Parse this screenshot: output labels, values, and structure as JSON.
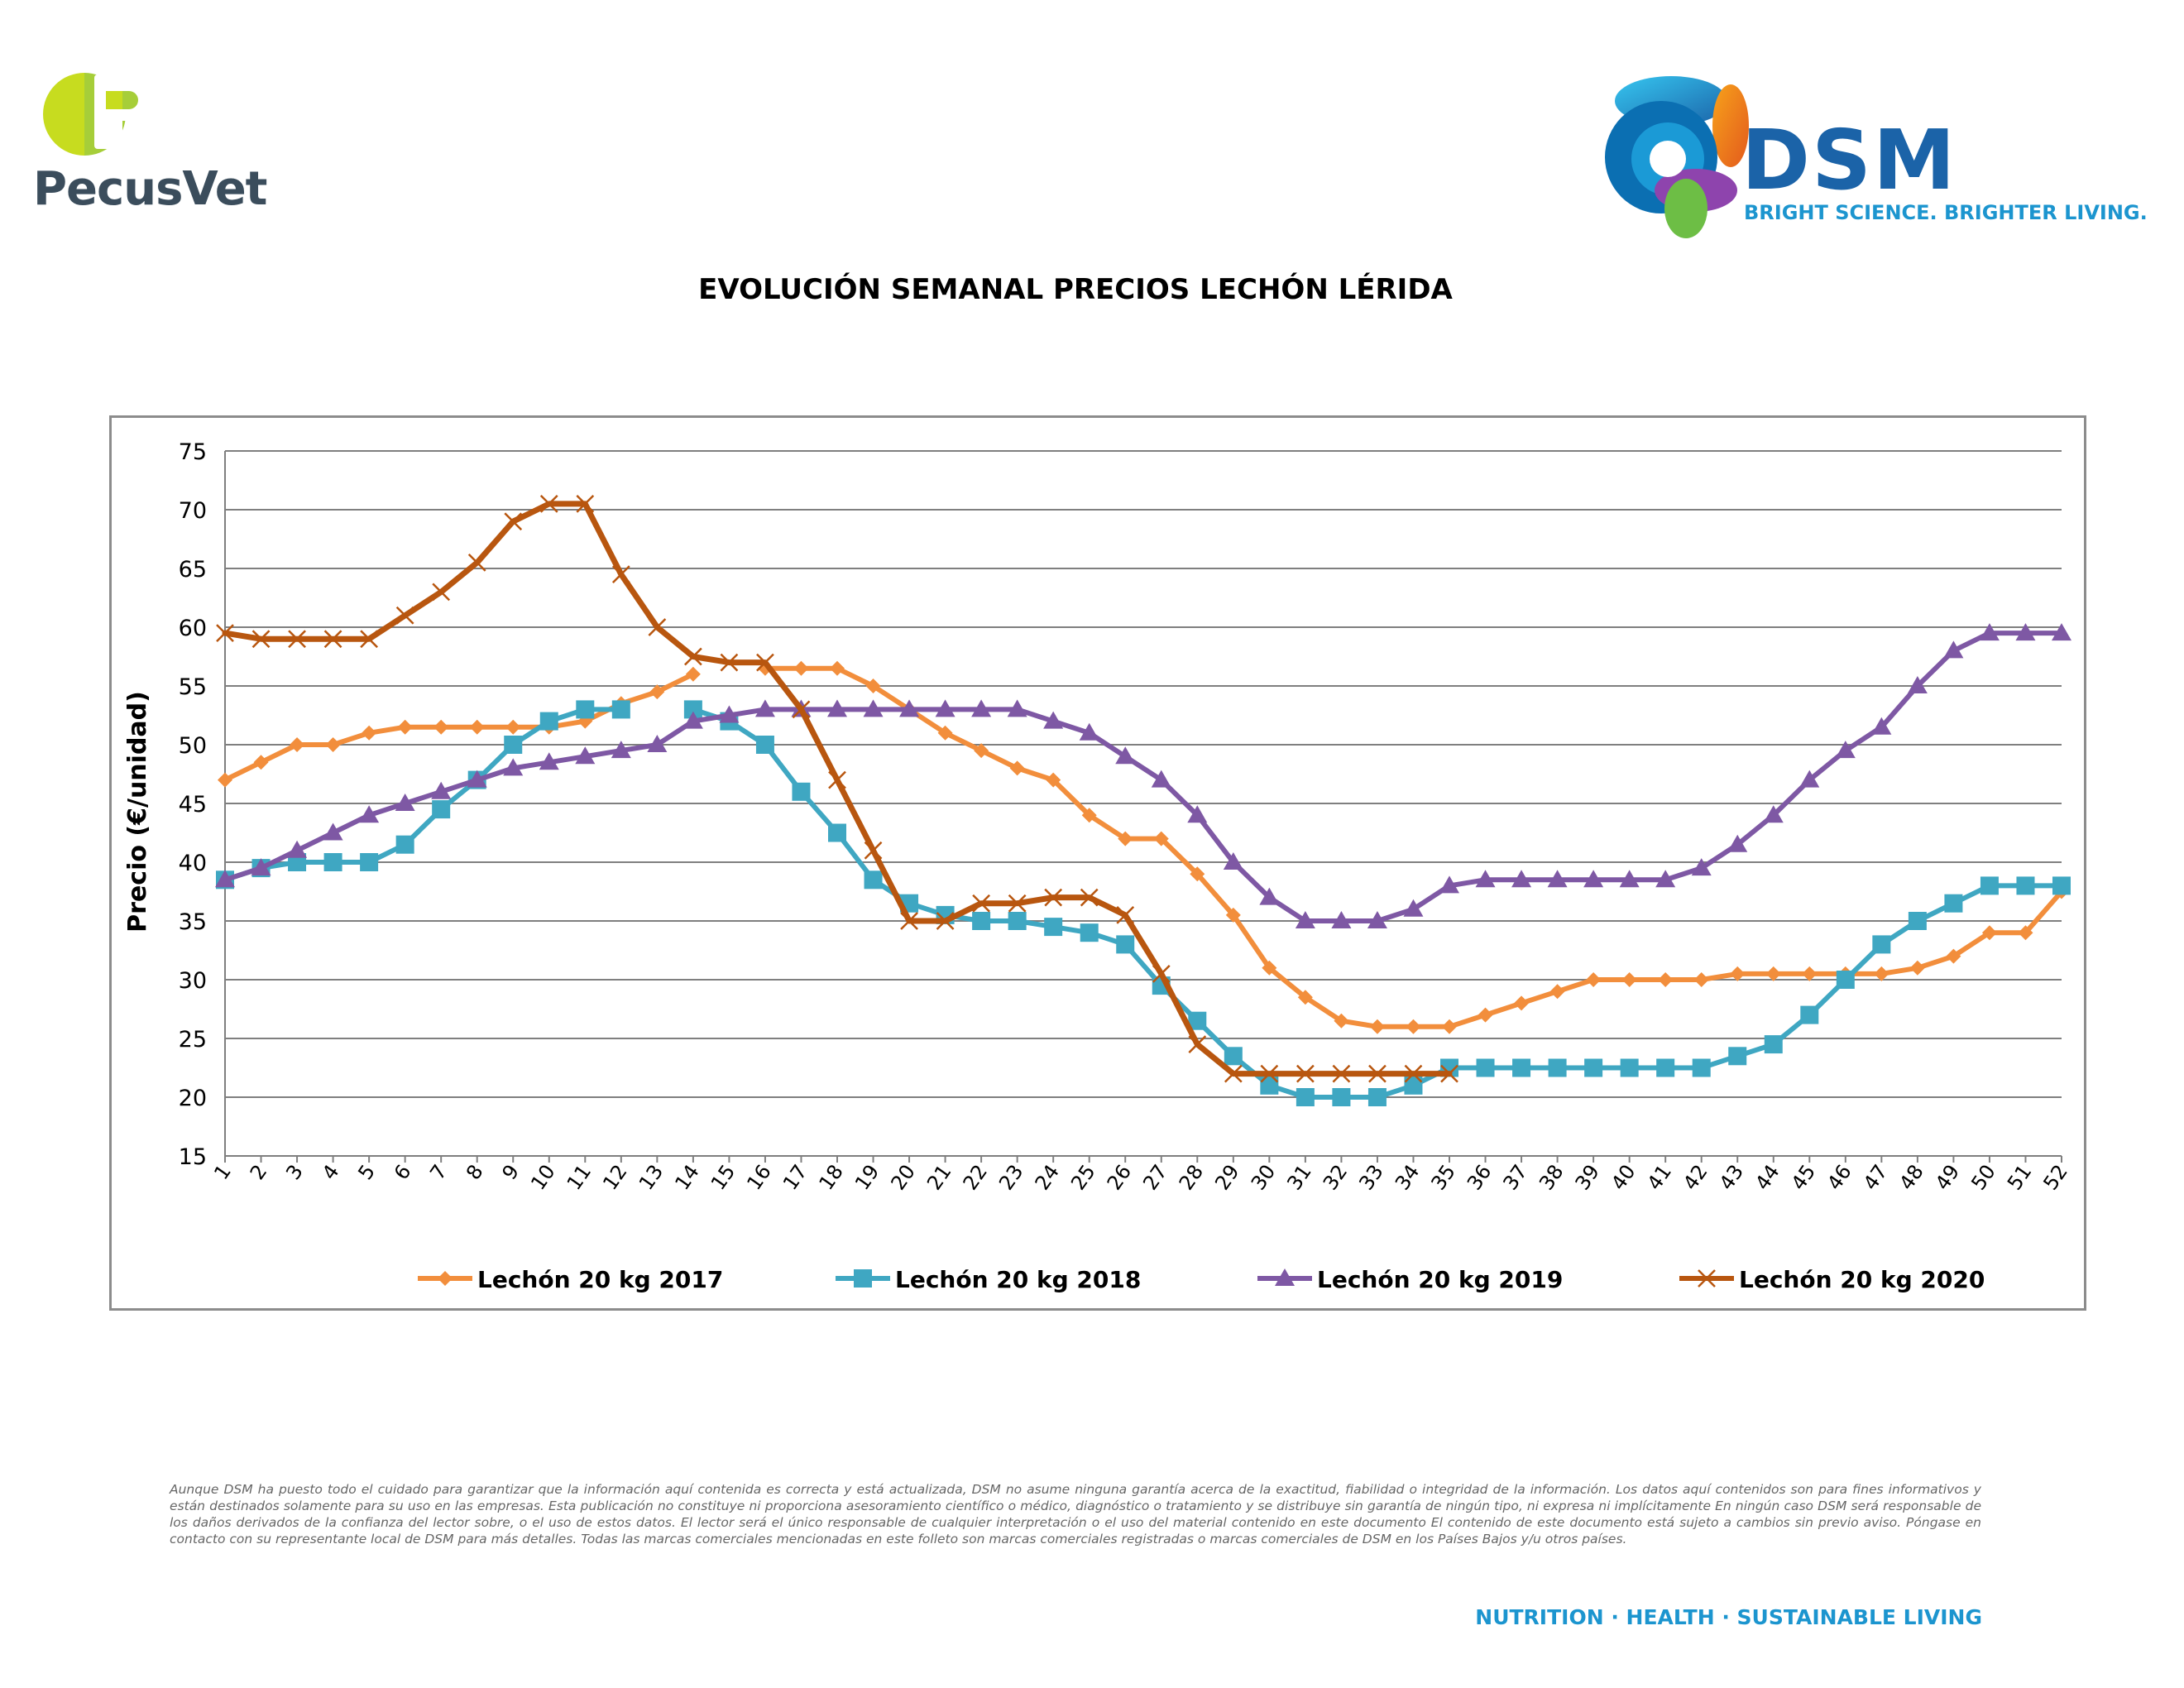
{
  "logos": {
    "pecusvet_name": "PecusVet",
    "dsm_name": "DSM",
    "dsm_tagline": "BRIGHT SCIENCE. BRIGHTER LIVING."
  },
  "disclaimer": "Aunque DSM ha puesto todo el cuidado para garantizar que la información aquí contenida es correcta y está actualizada, DSM no asume ninguna garantía acerca de la exactitud, fiabilidad o integridad de la información. Los datos aquí contenidos son para fines informativos y están destinados solamente para su uso en las empresas. Esta publicación no constituye ni proporciona asesoramiento científico o médico, diagnóstico o tratamiento y se distribuye sin garantía de ningún tipo, ni expresa ni implícitamente En ningún caso DSM será responsable de los daños derivados de la confianza del lector sobre, o el uso de estos datos. El lector será el único responsable de cualquier interpretación o el uso del material contenido en este documento El contenido de este documento está sujeto a cambios sin previo aviso. Póngase en contacto con su representante local de DSM para más detalles. Todas las marcas comerciales mencionadas en este folleto son marcas comerciales registradas o marcas comerciales de DSM en los Países Bajos y/u otros países.",
  "footer_tagline": "NUTRITION · HEALTH · SUSTAINABLE LIVING",
  "chart_data": {
    "type": "line",
    "title": "EVOLUCIÓN SEMANAL PRECIOS LECHÓN LÉRIDA",
    "xlabel": "",
    "ylabel": "Precio (€/unidad)",
    "ylim": [
      15,
      75
    ],
    "ytick_step": 5,
    "grid": true,
    "legend_position": "bottom",
    "x": [
      1,
      2,
      3,
      4,
      5,
      6,
      7,
      8,
      9,
      10,
      11,
      12,
      13,
      14,
      15,
      16,
      17,
      18,
      19,
      20,
      21,
      22,
      23,
      24,
      25,
      26,
      27,
      28,
      29,
      30,
      31,
      32,
      33,
      34,
      35,
      36,
      37,
      38,
      39,
      40,
      41,
      42,
      43,
      44,
      45,
      46,
      47,
      48,
      49,
      50,
      51,
      52
    ],
    "series": [
      {
        "name": "Lechón 20 kg 2017",
        "color": "#f28e3c",
        "marker": "diamond",
        "values": [
          47,
          48.5,
          50,
          50,
          51,
          51.5,
          51.5,
          51.5,
          51.5,
          51.5,
          52,
          53.5,
          54.5,
          56,
          null,
          56.5,
          56.5,
          56.5,
          55,
          53,
          51,
          49.5,
          48,
          47,
          44,
          42,
          42,
          39,
          35.5,
          31,
          28.5,
          26.5,
          26,
          26,
          26,
          27,
          28,
          29,
          30,
          30,
          30,
          30,
          30.5,
          30.5,
          30.5,
          30.5,
          30.5,
          31,
          32,
          34,
          34,
          37.5
        ]
      },
      {
        "name": "Lechón 20 kg 2018",
        "color": "#3fa7c2",
        "marker": "square",
        "values": [
          38.5,
          39.5,
          40,
          40,
          40,
          41.5,
          44.5,
          47,
          50,
          52,
          53,
          53,
          null,
          53,
          52,
          50,
          46,
          42.5,
          38.5,
          36.5,
          35.5,
          35,
          35,
          34.5,
          34,
          33,
          29.5,
          26.5,
          23.5,
          21,
          20,
          20,
          20,
          21,
          22.5,
          22.5,
          22.5,
          22.5,
          22.5,
          22.5,
          22.5,
          22.5,
          23.5,
          24.5,
          27,
          30,
          33,
          35,
          36.5,
          38,
          38,
          38
        ]
      },
      {
        "name": "Lechón 20 kg 2019",
        "color": "#7e58a4",
        "marker": "triangle",
        "values": [
          38.5,
          39.5,
          41,
          42.5,
          44,
          45,
          46,
          47,
          48,
          48.5,
          49,
          49.5,
          50,
          52,
          52.5,
          53,
          53,
          53,
          53,
          53,
          53,
          53,
          53,
          52,
          51,
          49,
          47,
          44,
          40,
          37,
          35,
          35,
          35,
          36,
          38,
          38.5,
          38.5,
          38.5,
          38.5,
          38.5,
          38.5,
          39.5,
          41.5,
          44,
          47,
          49.5,
          51.5,
          55,
          58,
          59.5,
          59.5,
          59.5
        ]
      },
      {
        "name": "Lechón 20 kg 2020",
        "color": "#b8560f",
        "marker": "x",
        "values": [
          59.5,
          59,
          59,
          59,
          59,
          61,
          63,
          65.5,
          69,
          70.5,
          70.5,
          64.5,
          60,
          57.5,
          57,
          57,
          53,
          47,
          41,
          35,
          35,
          36.5,
          36.5,
          37,
          37,
          35.5,
          30.5,
          24.5,
          22,
          22,
          22,
          22,
          22,
          22,
          22,
          null,
          null,
          null,
          null,
          null,
          null,
          null,
          null,
          null,
          null,
          null,
          null,
          null,
          null,
          null,
          null,
          null
        ]
      }
    ]
  }
}
